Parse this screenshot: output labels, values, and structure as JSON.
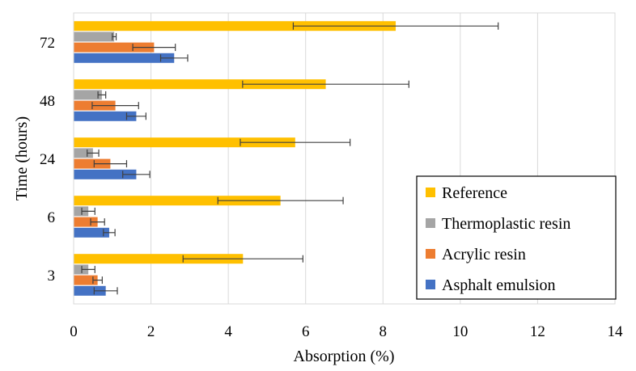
{
  "chart_data": {
    "type": "bar",
    "orientation": "horizontal",
    "categories": [
      "3",
      "6",
      "24",
      "48",
      "72"
    ],
    "xlabel": "Absorption (%)",
    "ylabel": "Time (hours)",
    "xlim": [
      0,
      14
    ],
    "xticks": [
      "0",
      "2",
      "4",
      "6",
      "8",
      "10",
      "12",
      "14"
    ],
    "grid": "vertical",
    "legend_position": "bottom-right",
    "series": [
      {
        "name": "Asphalt emulsion",
        "color": "#4472C4",
        "values": [
          0.83,
          0.92,
          1.62,
          1.62,
          2.6
        ],
        "errors": [
          0.3,
          0.15,
          0.35,
          0.25,
          0.35
        ]
      },
      {
        "name": "Acrylic resin",
        "color": "#ED7D31",
        "values": [
          0.62,
          0.62,
          0.95,
          1.08,
          2.08
        ],
        "errors": [
          0.12,
          0.18,
          0.42,
          0.6,
          0.55
        ]
      },
      {
        "name": "Thermoplastic resin",
        "color": "#A5A5A5",
        "values": [
          0.38,
          0.38,
          0.5,
          0.73,
          1.05
        ],
        "errors": [
          0.17,
          0.17,
          0.15,
          0.1,
          0.05
        ]
      },
      {
        "name": "Reference",
        "color": "#FFC000",
        "values": [
          4.38,
          5.35,
          5.73,
          6.52,
          8.33
        ],
        "errors": [
          1.55,
          1.62,
          1.42,
          2.15,
          2.65
        ]
      }
    ],
    "legend_order": [
      "Reference",
      "Thermoplastic resin",
      "Acrylic resin",
      "Asphalt emulsion"
    ]
  }
}
